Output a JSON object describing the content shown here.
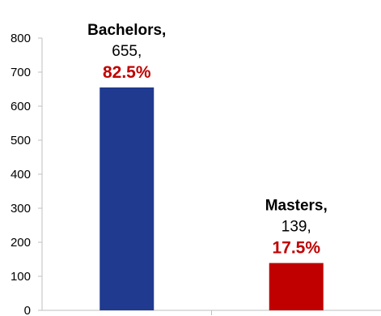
{
  "chart_data": {
    "type": "bar",
    "title": "",
    "xlabel": "",
    "ylabel": "",
    "ylim": [
      0,
      800
    ],
    "yticks": [
      0,
      100,
      200,
      300,
      400,
      500,
      600,
      700,
      800
    ],
    "grid": false,
    "legend": "none",
    "categories": [
      "Bachelors",
      "Masters"
    ],
    "values": [
      655,
      139
    ],
    "data_labels": [
      {
        "name": "Bachelors,",
        "value": "655,",
        "percent": "82.5%"
      },
      {
        "name": "Masters,",
        "value": "139,",
        "percent": "17.5%"
      }
    ],
    "colors": [
      "#1f3a8f",
      "#c00000"
    ],
    "percent_color": "#c00000",
    "axis_color": "#bfbfbf"
  }
}
